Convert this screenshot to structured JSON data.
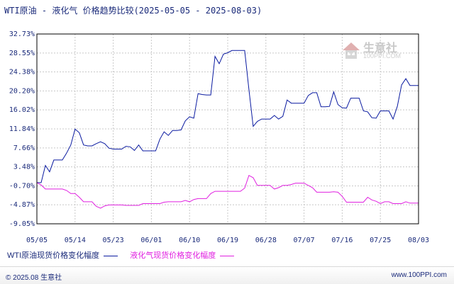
{
  "title": "WTI原油 - 液化气 价格趋势比较(2025-05-05 - 2025-08-03)",
  "footer": {
    "copyright": "© 2025.08 生意社",
    "url": "www.100PPI.com"
  },
  "watermark": {
    "brand": "生意社",
    "url": "100PPI.COM"
  },
  "colors": {
    "wti": "#0a1aa0",
    "lpg": "#e020e0",
    "text": "#1a2a7a"
  },
  "chart_data": {
    "type": "line",
    "ylim": [
      -9.05,
      32.73
    ],
    "yticks": [
      "32.73%",
      "28.55%",
      "24.38%",
      "20.20%",
      "16.02%",
      "11.84%",
      "7.66%",
      "3.48%",
      "-0.70%",
      "-4.87%",
      "-9.05%"
    ],
    "yvalues": [
      32.73,
      28.55,
      24.38,
      20.2,
      16.02,
      11.84,
      7.66,
      3.48,
      -0.7,
      -4.87,
      -9.05
    ],
    "xticks": [
      "05/05",
      "05/14",
      "05/23",
      "06/01",
      "06/10",
      "06/19",
      "06/28",
      "07/07",
      "07/16",
      "07/25",
      "08/03"
    ],
    "x_days": [
      0,
      9,
      18,
      27,
      36,
      45,
      54,
      63,
      72,
      81,
      90
    ],
    "series": [
      {
        "name": "WTI原油现货价格变化幅度",
        "color": "#0a1aa0",
        "points": [
          [
            0,
            0
          ],
          [
            1,
            0
          ],
          [
            2,
            3.8
          ],
          [
            3,
            2.4
          ],
          [
            4,
            5
          ],
          [
            5,
            5
          ],
          [
            6,
            5
          ],
          [
            7,
            6.5
          ],
          [
            8,
            8.3
          ],
          [
            9,
            11.8
          ],
          [
            10,
            11
          ],
          [
            11,
            8.3
          ],
          [
            12,
            8.1
          ],
          [
            13,
            8.1
          ],
          [
            14,
            8.6
          ],
          [
            15,
            9.0
          ],
          [
            16,
            8.6
          ],
          [
            17,
            7.6
          ],
          [
            18,
            7.4
          ],
          [
            19,
            7.4
          ],
          [
            20,
            7.4
          ],
          [
            21,
            8.0
          ],
          [
            22,
            7.9
          ],
          [
            23,
            7.1
          ],
          [
            24,
            8.3
          ],
          [
            25,
            7.0
          ],
          [
            26,
            7.0
          ],
          [
            27,
            7.0
          ],
          [
            28,
            7.0
          ],
          [
            29,
            9.6
          ],
          [
            30,
            11.2
          ],
          [
            31,
            10.4
          ],
          [
            32,
            11.5
          ],
          [
            33,
            11.5
          ],
          [
            34,
            11.6
          ],
          [
            35,
            13.6
          ],
          [
            36,
            14.5
          ],
          [
            37,
            14.2
          ],
          [
            38,
            19.6
          ],
          [
            39,
            19.4
          ],
          [
            40,
            19.3
          ],
          [
            41,
            19.3
          ],
          [
            42,
            27.8
          ],
          [
            43,
            26.2
          ],
          [
            44,
            28.3
          ],
          [
            45,
            28.6
          ],
          [
            46,
            29.1
          ],
          [
            47,
            29.1
          ],
          [
            48,
            29.1
          ],
          [
            49,
            29.1
          ],
          [
            50,
            20.5
          ],
          [
            51,
            12.4
          ],
          [
            52,
            13.5
          ],
          [
            53,
            14.0
          ],
          [
            54,
            14.0
          ],
          [
            55,
            14.0
          ],
          [
            56,
            14.8
          ],
          [
            57,
            14.0
          ],
          [
            58,
            14.6
          ],
          [
            59,
            18.2
          ],
          [
            60,
            17.5
          ],
          [
            61,
            17.5
          ],
          [
            62,
            17.5
          ],
          [
            63,
            17.5
          ],
          [
            64,
            19.2
          ],
          [
            65,
            19.8
          ],
          [
            66,
            19.8
          ],
          [
            67,
            16.7
          ],
          [
            68,
            16.7
          ],
          [
            69,
            16.8
          ],
          [
            70,
            20.0
          ],
          [
            71,
            17.2
          ],
          [
            72,
            16.5
          ],
          [
            73,
            16.4
          ],
          [
            74,
            18.6
          ],
          [
            75,
            18.6
          ],
          [
            76,
            18.6
          ],
          [
            77,
            15.8
          ],
          [
            78,
            15.6
          ],
          [
            79,
            14.3
          ],
          [
            80,
            14.2
          ],
          [
            81,
            15.8
          ],
          [
            82,
            15.8
          ],
          [
            83,
            15.8
          ],
          [
            84,
            14.0
          ],
          [
            85,
            16.8
          ],
          [
            86,
            21.5
          ],
          [
            87,
            22.9
          ],
          [
            88,
            21.4
          ],
          [
            89,
            21.4
          ],
          [
            90,
            21.4
          ]
        ]
      },
      {
        "name": "液化气现货价格变化幅度",
        "color": "#e020e0",
        "points": [
          [
            0,
            0
          ],
          [
            1,
            -0.5
          ],
          [
            2,
            -1.4
          ],
          [
            3,
            -1.4
          ],
          [
            4,
            -1.4
          ],
          [
            5,
            -1.4
          ],
          [
            6,
            -1.4
          ],
          [
            7,
            -1.7
          ],
          [
            8,
            -2.4
          ],
          [
            9,
            -2.4
          ],
          [
            10,
            -3.2
          ],
          [
            11,
            -4.2
          ],
          [
            12,
            -4.2
          ],
          [
            13,
            -4.2
          ],
          [
            14,
            -5.2
          ],
          [
            15,
            -5.6
          ],
          [
            16,
            -5.1
          ],
          [
            17,
            -4.9
          ],
          [
            18,
            -4.9
          ],
          [
            19,
            -4.9
          ],
          [
            20,
            -4.9
          ],
          [
            21,
            -5.0
          ],
          [
            22,
            -5.0
          ],
          [
            23,
            -5.0
          ],
          [
            24,
            -5.0
          ],
          [
            25,
            -4.6
          ],
          [
            26,
            -4.6
          ],
          [
            27,
            -4.6
          ],
          [
            28,
            -4.6
          ],
          [
            29,
            -4.6
          ],
          [
            30,
            -4.3
          ],
          [
            31,
            -4.2
          ],
          [
            32,
            -4.2
          ],
          [
            33,
            -4.2
          ],
          [
            34,
            -4.2
          ],
          [
            35,
            -3.9
          ],
          [
            36,
            -4.2
          ],
          [
            37,
            -3.7
          ],
          [
            38,
            -3.5
          ],
          [
            39,
            -3.5
          ],
          [
            40,
            -3.5
          ],
          [
            41,
            -2.4
          ],
          [
            42,
            -1.9
          ],
          [
            43,
            -1.9
          ],
          [
            44,
            -1.9
          ],
          [
            45,
            -1.9
          ],
          [
            46,
            -1.9
          ],
          [
            47,
            -1.9
          ],
          [
            48,
            -1.9
          ],
          [
            49,
            -1.2
          ],
          [
            50,
            1.6
          ],
          [
            51,
            1.1
          ],
          [
            52,
            -0.6
          ],
          [
            53,
            -0.6
          ],
          [
            54,
            -0.6
          ],
          [
            55,
            -0.6
          ],
          [
            56,
            -1.4
          ],
          [
            57,
            -1.1
          ],
          [
            58,
            -0.6
          ],
          [
            59,
            -0.6
          ],
          [
            60,
            -0.4
          ],
          [
            61,
            -0.1
          ],
          [
            62,
            -0.1
          ],
          [
            63,
            -0.1
          ],
          [
            64,
            -0.6
          ],
          [
            65,
            -1.1
          ],
          [
            66,
            -2.1
          ],
          [
            67,
            -2.1
          ],
          [
            68,
            -2.1
          ],
          [
            69,
            -2.1
          ],
          [
            70,
            -2.0
          ],
          [
            71,
            -2.1
          ],
          [
            72,
            -3.0
          ],
          [
            73,
            -4.3
          ],
          [
            74,
            -4.3
          ],
          [
            75,
            -4.3
          ],
          [
            76,
            -4.3
          ],
          [
            77,
            -4.3
          ],
          [
            78,
            -3.2
          ],
          [
            79,
            -3.8
          ],
          [
            80,
            -4.1
          ],
          [
            81,
            -4.6
          ],
          [
            82,
            -4.2
          ],
          [
            83,
            -4.2
          ],
          [
            84,
            -4.6
          ],
          [
            85,
            -4.6
          ],
          [
            86,
            -4.6
          ],
          [
            87,
            -4.2
          ],
          [
            88,
            -4.5
          ],
          [
            89,
            -4.5
          ],
          [
            90,
            -4.5
          ]
        ]
      }
    ]
  }
}
